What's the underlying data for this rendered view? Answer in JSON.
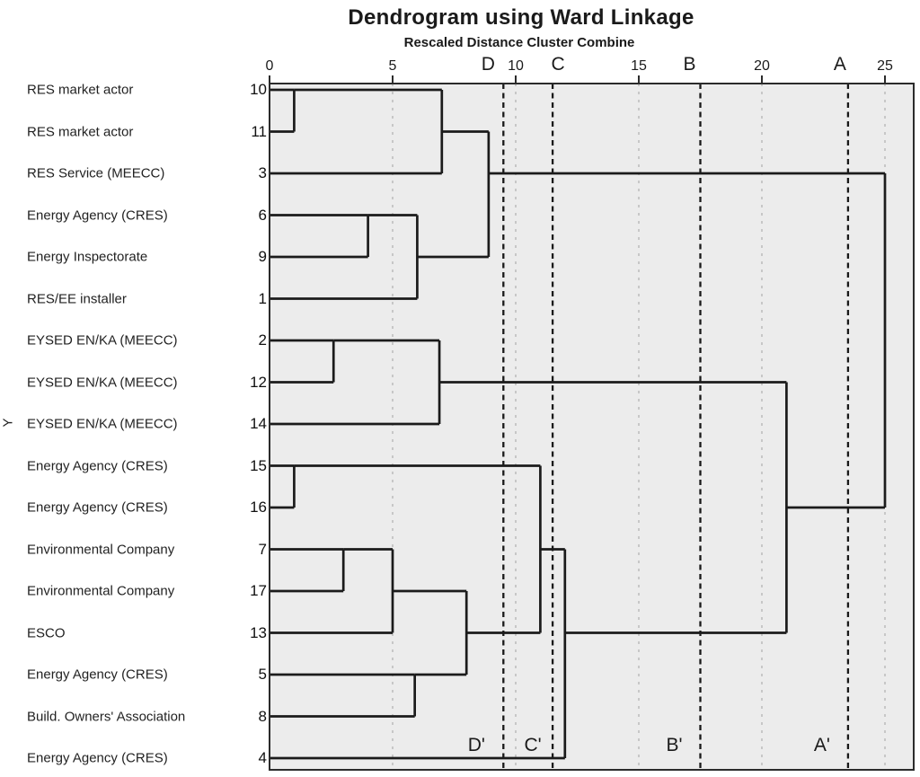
{
  "title": "Dendrogram using Ward Linkage",
  "subtitle": "Rescaled Distance Cluster Combine",
  "y_axis_label": "Y",
  "colors": {
    "plot_background": "#ececec",
    "frame": "#2b2b2b",
    "dendrogram_line": "#1b1b1b",
    "gridline": "#c3c3c3",
    "cut_line": "#191919",
    "text": "#1a1a1a"
  },
  "chart_data": {
    "type": "dendrogram",
    "linkage": "Ward",
    "title": "Dendrogram using Ward Linkage",
    "distance_axis": {
      "label": "Rescaled Distance Cluster Combine",
      "range": [
        0,
        25
      ],
      "ticks": [
        0,
        5,
        10,
        15,
        20,
        25
      ],
      "grid": "dashed-light"
    },
    "leaves": [
      {
        "case": 10,
        "label": "RES market actor"
      },
      {
        "case": 11,
        "label": "RES market actor"
      },
      {
        "case": 3,
        "label": "RES Service (MEECC)"
      },
      {
        "case": 6,
        "label": "Energy Agency (CRES)"
      },
      {
        "case": 9,
        "label": "Energy Inspectorate"
      },
      {
        "case": 1,
        "label": "RES/EE installer"
      },
      {
        "case": 2,
        "label": "EYSED EN/KA (MEECC)"
      },
      {
        "case": 12,
        "label": "EYSED EN/KA (MEECC)"
      },
      {
        "case": 14,
        "label": "EYSED EN/KA (MEECC)"
      },
      {
        "case": 15,
        "label": "Energy Agency (CRES)"
      },
      {
        "case": 16,
        "label": "Energy Agency (CRES)"
      },
      {
        "case": 7,
        "label": "Environmental Company"
      },
      {
        "case": 17,
        "label": "Environmental Company"
      },
      {
        "case": 13,
        "label": "ESCO"
      },
      {
        "case": 5,
        "label": "Energy Agency (CRES)"
      },
      {
        "case": 8,
        "label": "Build. Owners' Association"
      },
      {
        "case": 4,
        "label": "Energy Agency (CRES)"
      }
    ],
    "merges_note": "a/b/out are display-row indices (0=top) of the joined cluster lines; d is rescaled distance",
    "merges": [
      {
        "a": 0,
        "b": 1,
        "d": 1.0,
        "out": 0
      },
      {
        "a": 9,
        "b": 10,
        "d": 1.0,
        "out": 9
      },
      {
        "a": 6,
        "b": 7,
        "d": 2.6,
        "out": 6
      },
      {
        "a": 11,
        "b": 12,
        "d": 3.0,
        "out": 11
      },
      {
        "a": 3,
        "b": 4,
        "d": 4.0,
        "out": 3
      },
      {
        "a": 11,
        "b": 13,
        "d": 5.0,
        "out": 12
      },
      {
        "a": 14,
        "b": 15,
        "d": 5.9,
        "out": 14
      },
      {
        "a": 3,
        "b": 5,
        "d": 6.0,
        "out": 4
      },
      {
        "a": 6,
        "b": 8,
        "d": 6.9,
        "out": 7
      },
      {
        "a": 0,
        "b": 2,
        "d": 7.0,
        "out": 1
      },
      {
        "a": 12,
        "b": 14,
        "d": 8.0,
        "out": 13
      },
      {
        "a": 1,
        "b": 4,
        "d": 8.9,
        "out": 2
      },
      {
        "a": 9,
        "b": 13,
        "d": 11.0,
        "out": 11
      },
      {
        "a": 11,
        "b": 16,
        "d": 12.0,
        "out": 13
      },
      {
        "a": 7,
        "b": 13,
        "d": 21.0,
        "out": 10
      },
      {
        "a": 2,
        "b": 10,
        "d": 25.0,
        "out": null
      }
    ],
    "cut_lines": [
      {
        "top_label": "D",
        "bottom_label": "D'",
        "d": 9.5
      },
      {
        "top_label": "C",
        "bottom_label": "C'",
        "d": 11.5
      },
      {
        "top_label": "B",
        "bottom_label": "B'",
        "d": 17.5
      },
      {
        "top_label": "A",
        "bottom_label": "A'",
        "d": 23.5
      }
    ]
  }
}
